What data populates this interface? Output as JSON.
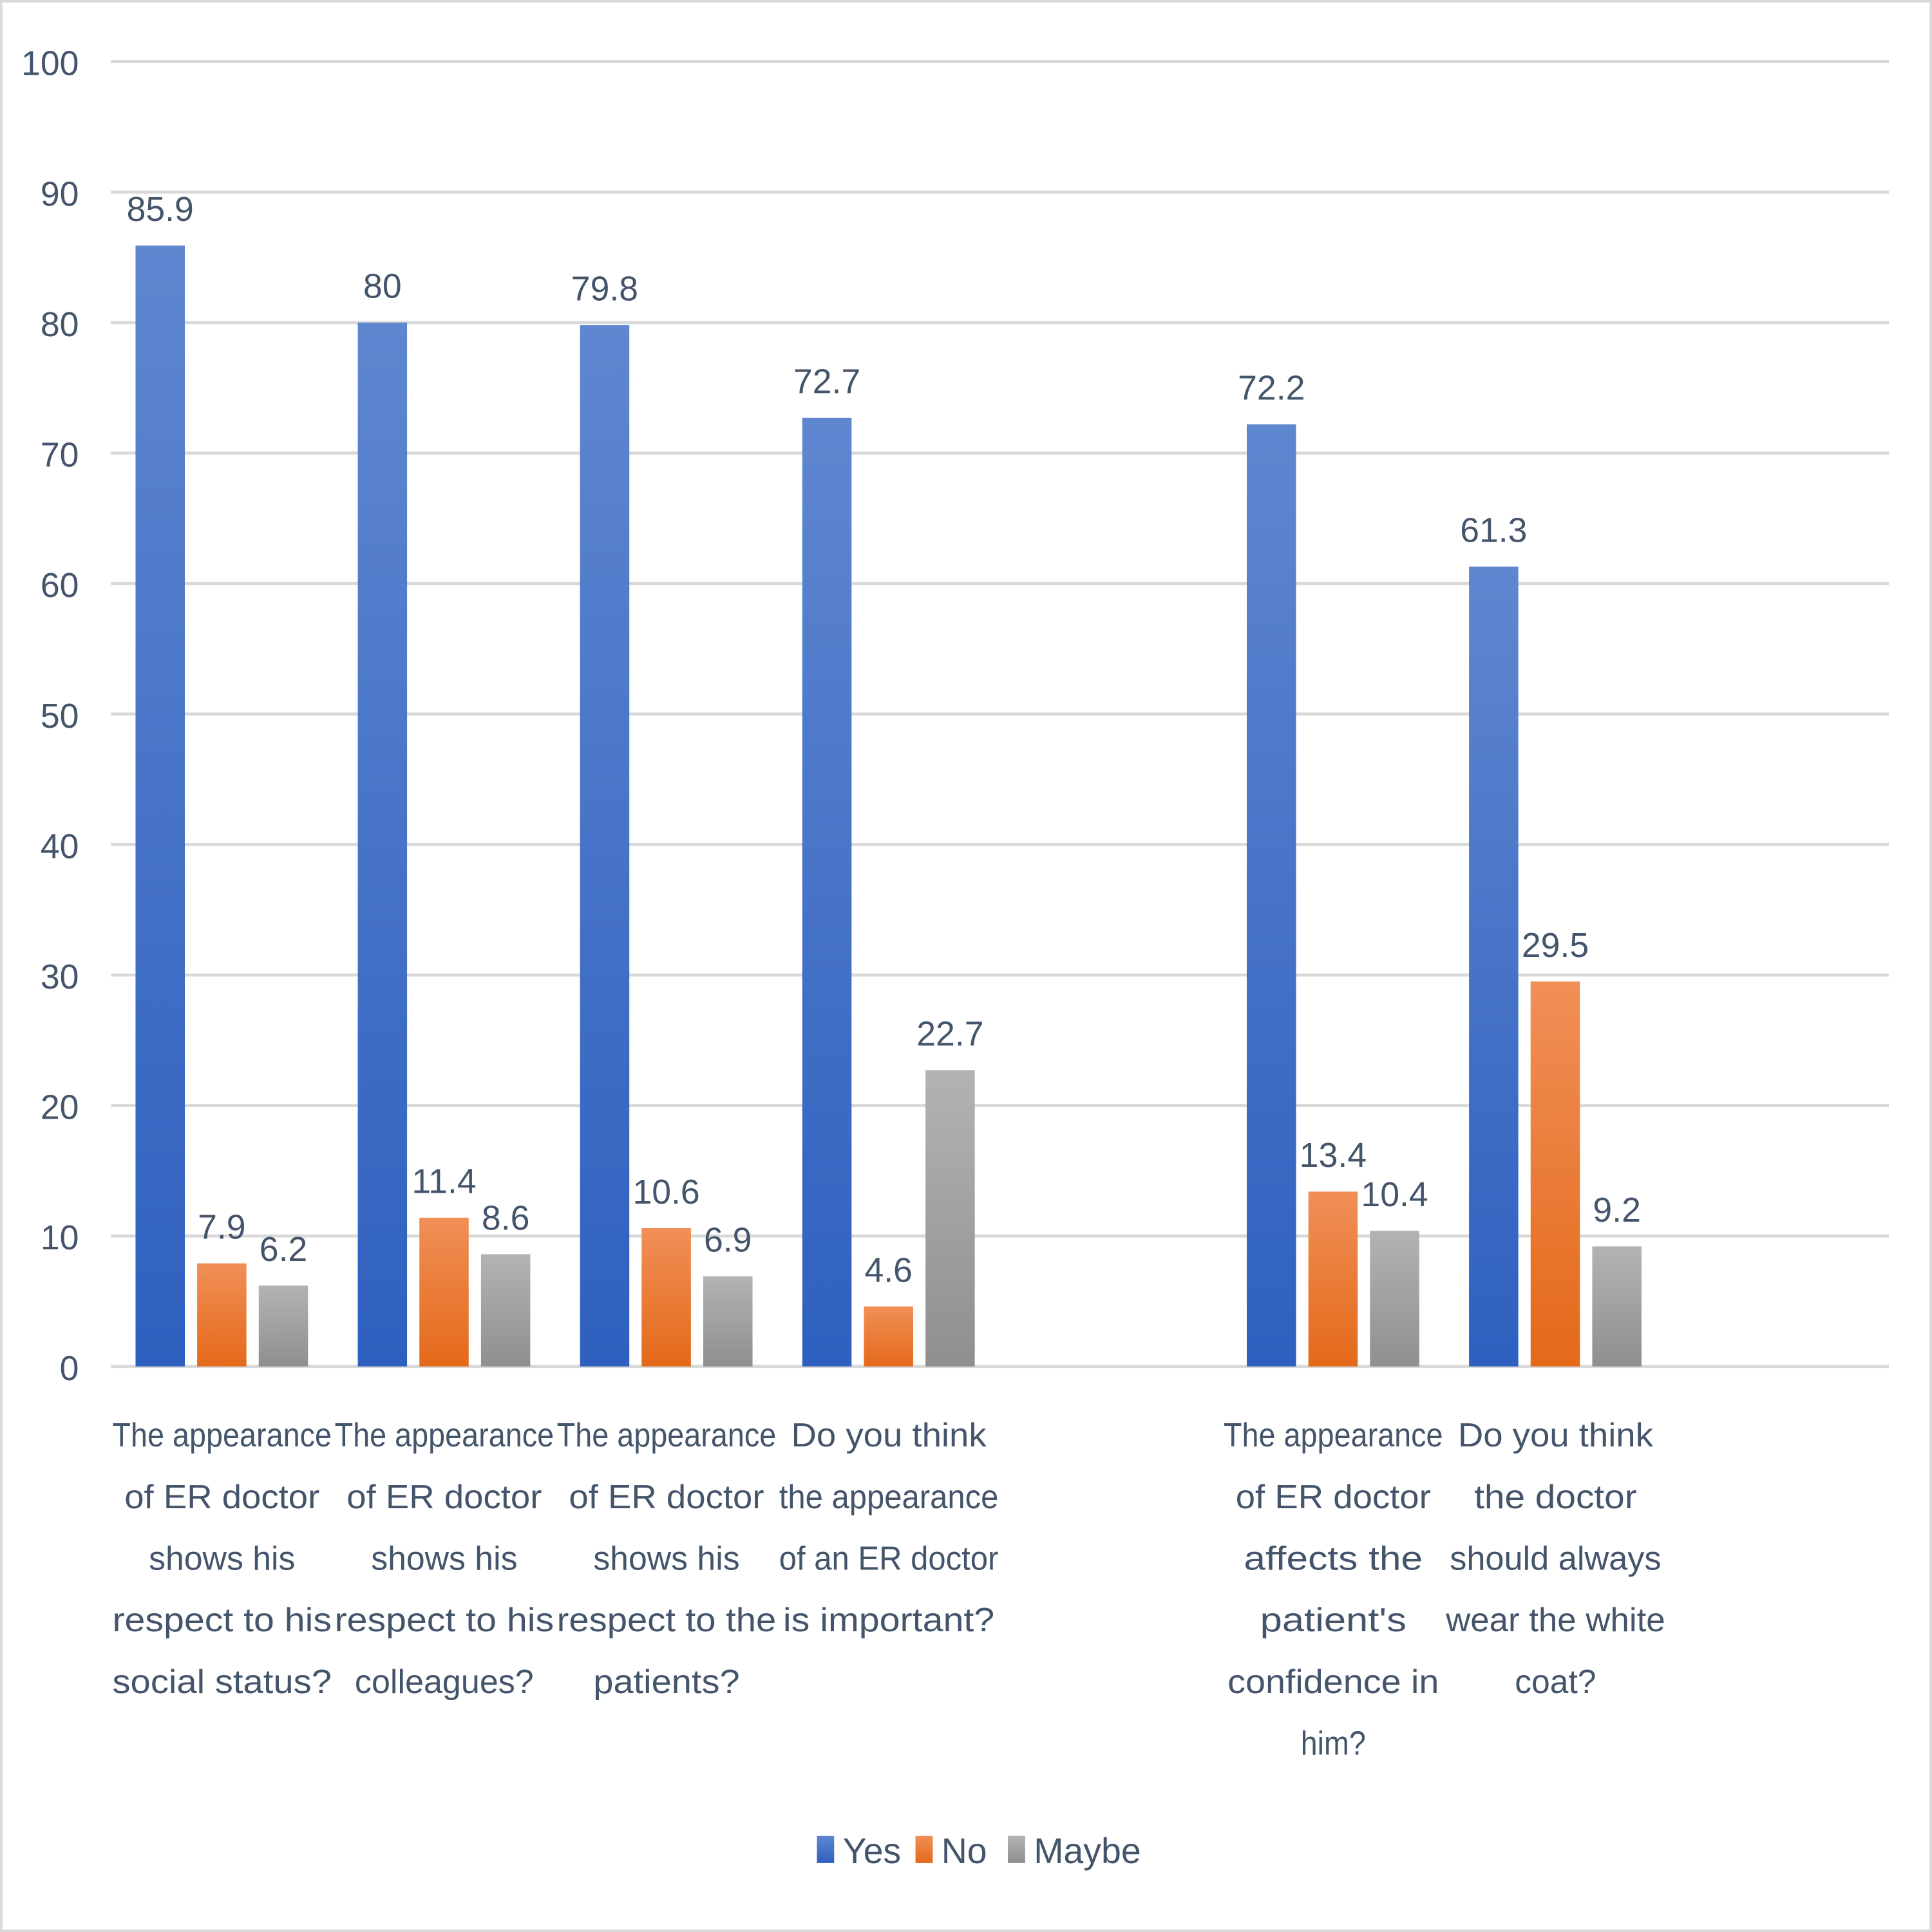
{
  "chart_data": {
    "type": "bar",
    "title": "",
    "xlabel": "",
    "ylabel": "",
    "ylim": [
      0,
      100
    ],
    "yticks": [
      0,
      10,
      20,
      30,
      40,
      50,
      60,
      70,
      80,
      90,
      100
    ],
    "grid": true,
    "legend_position": "bottom",
    "categories": [
      [
        "The appearance",
        "of ER doctor",
        "shows his",
        "respect to his",
        "social status?"
      ],
      [
        "The appearance",
        "of ER doctor",
        "shows his",
        "respect to his",
        "colleagues?"
      ],
      [
        "The appearance",
        "of ER doctor",
        "shows his",
        "respect to the",
        "patients?"
      ],
      [
        "Do you think",
        "the appearance",
        "of an ER doctor",
        "is important?"
      ],
      [],
      [
        "The appearance",
        "of ER doctor",
        "affects the",
        "patient's",
        "confidence in",
        "him?"
      ],
      [
        "Do you think",
        "the doctor",
        "should always",
        "wear the white",
        "coat?"
      ],
      []
    ],
    "series": [
      {
        "name": "Yes",
        "color": "#4472c4",
        "values": [
          85.9,
          80,
          79.8,
          72.7,
          null,
          72.2,
          61.3,
          null
        ]
      },
      {
        "name": "No",
        "color": "#ed7d31",
        "values": [
          7.9,
          11.4,
          10.6,
          4.6,
          null,
          13.4,
          29.5,
          null
        ]
      },
      {
        "name": "Maybe",
        "color": "#a5a5a5",
        "values": [
          6.2,
          8.6,
          6.9,
          22.7,
          null,
          10.4,
          9.2,
          null
        ]
      }
    ]
  }
}
